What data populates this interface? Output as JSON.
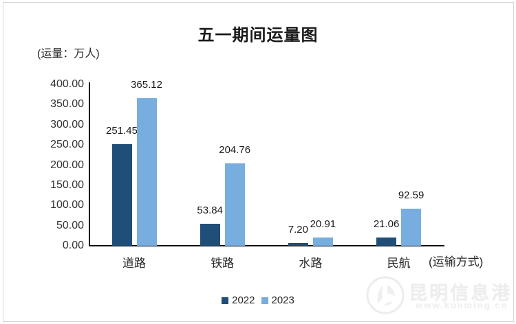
{
  "title": "五一期间运量图",
  "y_axis": {
    "unit_label": "(运量：万人)",
    "tick_labels": [
      "400.00",
      "350.00",
      "300.00",
      "250.00",
      "200.00",
      "150.00",
      "100.00",
      "50.00",
      "0.00"
    ]
  },
  "x_axis": {
    "label": "(运输方式)"
  },
  "chart_data": {
    "type": "bar",
    "title": "五一期间运量图",
    "categories": [
      "道路",
      "铁路",
      "水路",
      "民航"
    ],
    "series": [
      {
        "name": "2022",
        "color": "#1F4E79",
        "values": [
          251.45,
          53.84,
          7.2,
          21.06
        ]
      },
      {
        "name": "2023",
        "color": "#77ADDF",
        "values": [
          365.12,
          204.76,
          20.91,
          92.59
        ]
      }
    ],
    "ylabel": "(运量：万人)",
    "xlabel": "(运输方式)",
    "ylim": [
      0,
      400
    ],
    "ytick_step": 50,
    "grid": false,
    "legend_position": "bottom",
    "value_labels": true,
    "value_format": "0.00"
  },
  "legend": {
    "items": [
      {
        "label": "2022",
        "color": "#1F4E79"
      },
      {
        "label": "2023",
        "color": "#77ADDF"
      }
    ]
  },
  "watermark": {
    "site_name": "昆明信息港",
    "site_url": "www.kunming.cn"
  },
  "colors": {
    "series_2022": "#1F4E79",
    "series_2023": "#77ADDF",
    "axis": "#0a0a0a",
    "frame_border": "#d6d6d6"
  }
}
